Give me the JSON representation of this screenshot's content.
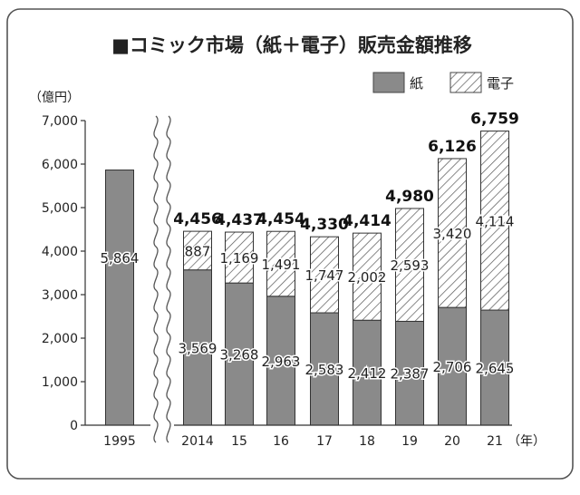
{
  "chart_data": {
    "type": "bar",
    "title": "■コミック市場（紙＋電子）販売金額推移",
    "ylabel": "（億円）",
    "xunit": "（年）",
    "ylim": [
      0,
      7000
    ],
    "yticks": [
      "0",
      "1,000",
      "2,000",
      "3,000",
      "4,000",
      "5,000",
      "6,000",
      "7,000"
    ],
    "categories": [
      "1995",
      "2014",
      "15",
      "16",
      "17",
      "18",
      "19",
      "20",
      "21"
    ],
    "series": [
      {
        "name": "紙",
        "values": [
          5864,
          3569,
          3268,
          2963,
          2583,
          2412,
          2387,
          2706,
          2645
        ],
        "labels": [
          "5,864",
          "3,569",
          "3,268",
          "2,963",
          "2,583",
          "2,412",
          "2,387",
          "2,706",
          "2,645"
        ]
      },
      {
        "name": "電子",
        "values": [
          0,
          887,
          1169,
          1491,
          1747,
          2002,
          2593,
          3420,
          4114
        ],
        "labels": [
          "",
          "887",
          "1,169",
          "1,491",
          "1,747",
          "2,002",
          "2,593",
          "3,420",
          "4,114"
        ]
      }
    ],
    "totals": [
      "",
      "4,456",
      "4,437",
      "4,454",
      "4,330",
      "4,414",
      "4,980",
      "6,126",
      "6,759"
    ],
    "axis_break": "between 1995 and 2014",
    "grid": false,
    "legend": "top-right"
  },
  "colors": {
    "paper": "#8a8a8a",
    "digital_hatch": "#555555",
    "border": "#555555",
    "text": "#222222"
  }
}
